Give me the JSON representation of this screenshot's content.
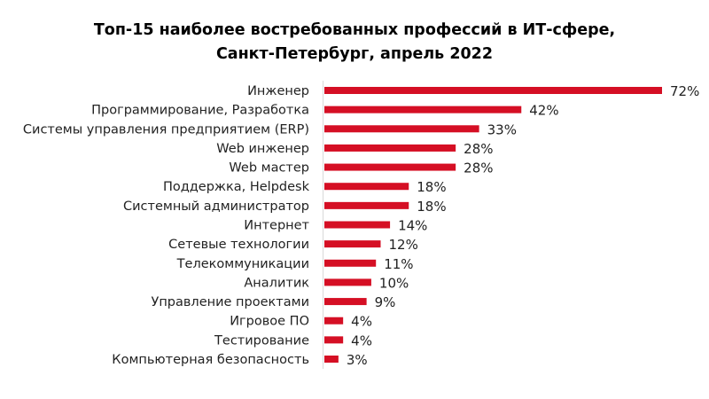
{
  "chart_data": {
    "type": "bar",
    "orientation": "horizontal",
    "title": [
      "Топ-15 наиболее востребованных профессий в ИТ-сфере,",
      "Санкт-Петербург, апрель 2022"
    ],
    "xlabel": "",
    "ylabel": "",
    "xlim": [
      0,
      72
    ],
    "grid": false,
    "bar_color": "#d50f24",
    "axis_color": "#d9d9d9",
    "value_suffix": "%",
    "categories": [
      "Инженер",
      "Программирование, Разработка",
      "Системы управления предприятием (ERP)",
      "Web инженер",
      "Web мастер",
      "Поддержка, Helpdesk",
      "Системный администратор",
      "Интернет",
      "Сетевые технологии",
      "Телекоммуникации",
      "Аналитик",
      "Управление проектами",
      "Игровое ПО",
      "Тестирование",
      "Компьютерная безопасность"
    ],
    "values": [
      72,
      42,
      33,
      28,
      28,
      18,
      18,
      14,
      12,
      11,
      10,
      9,
      4,
      4,
      3
    ],
    "labels": [
      "72%",
      "42%",
      "33%",
      "28%",
      "28%",
      "18%",
      "18%",
      "14%",
      "12%",
      "11%",
      "10%",
      "9%",
      "4%",
      "4%",
      "3%"
    ]
  }
}
